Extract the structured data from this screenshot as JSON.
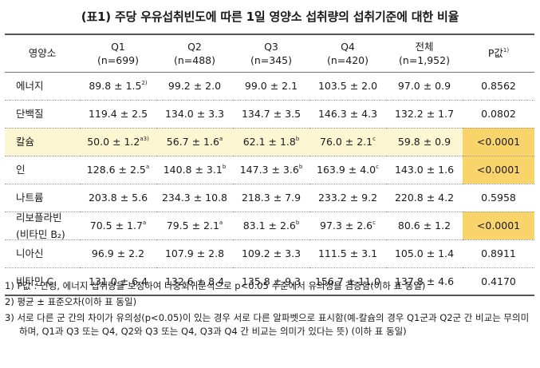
{
  "title": "(표1) 주당 우유섭취빈도에 따른 1일 영양소 섭취량의 섭취기준에 대한 비율",
  "table": {
    "headers": [
      {
        "label": "영양소",
        "sub": ""
      },
      {
        "label": "Q1",
        "sub": "(n=699)"
      },
      {
        "label": "Q2",
        "sub": "(n=488)"
      },
      {
        "label": "Q3",
        "sub": "(n=345)"
      },
      {
        "label": "Q4",
        "sub": "(n=420)"
      },
      {
        "label": "전체",
        "sub": "(n=1,952)"
      },
      {
        "label": "P값",
        "sup": "1)",
        "sub": ""
      }
    ],
    "rows": [
      {
        "name": "에너지",
        "sub": "",
        "cells": [
          {
            "value": "89.8 ± 1.5",
            "sup": "2)"
          },
          {
            "value": "99.2 ± 2.0",
            "sup": ""
          },
          {
            "value": "99.0 ± 2.1",
            "sup": ""
          },
          {
            "value": "103.5 ± 2.0",
            "sup": ""
          },
          {
            "value": "97.0 ± 0.9",
            "sup": ""
          }
        ],
        "p": "0.8562",
        "highlight": false
      },
      {
        "name": "단백질",
        "sub": "",
        "cells": [
          {
            "value": "119.4 ± 2.5",
            "sup": ""
          },
          {
            "value": "134.0 ± 3.3",
            "sup": ""
          },
          {
            "value": "134.7 ± 3.5",
            "sup": ""
          },
          {
            "value": "146.3 ± 4.3",
            "sup": ""
          },
          {
            "value": "132.2 ± 1.7",
            "sup": ""
          }
        ],
        "p": "0.0802",
        "highlight": false
      },
      {
        "name": "칼슘",
        "sub": "",
        "cells": [
          {
            "value": "50.0 ± 1.2",
            "sup": "a3)"
          },
          {
            "value": "56.7 ± 1.6",
            "sup": "a"
          },
          {
            "value": "62.1 ± 1.8",
            "sup": "b"
          },
          {
            "value": "76.0 ± 2.1",
            "sup": "c"
          },
          {
            "value": "59.8 ± 0.9",
            "sup": ""
          }
        ],
        "p": "<0.0001",
        "highlight": true
      },
      {
        "name": "인",
        "sub": "",
        "cells": [
          {
            "value": "128.6 ± 2.5",
            "sup": "a"
          },
          {
            "value": "140.8 ± 3.1",
            "sup": "b"
          },
          {
            "value": "147.3 ± 3.6",
            "sup": "b"
          },
          {
            "value": "163.9 ± 4.0",
            "sup": "c"
          },
          {
            "value": "143.0 ± 1.6",
            "sup": ""
          }
        ],
        "p": "<0.0001",
        "highlight": false
      },
      {
        "name": "나트륨",
        "sub": "",
        "cells": [
          {
            "value": "203.8 ± 5.6",
            "sup": ""
          },
          {
            "value": "234.3 ± 10.8",
            "sup": ""
          },
          {
            "value": "218.3 ± 7.9",
            "sup": ""
          },
          {
            "value": "233.2 ± 9.2",
            "sup": ""
          },
          {
            "value": "220.8 ± 4.2",
            "sup": ""
          }
        ],
        "p": "0.5958",
        "highlight": false
      },
      {
        "name": "리보플라빈",
        "sub": "(비타민 B₂)",
        "cells": [
          {
            "value": "70.5 ± 1.7",
            "sup": "a"
          },
          {
            "value": "79.5 ± 2.1",
            "sup": "a"
          },
          {
            "value": "83.1 ± 2.6",
            "sup": "b"
          },
          {
            "value": "97.3 ± 2.6",
            "sup": "c"
          },
          {
            "value": "80.6 ± 1.2",
            "sup": ""
          }
        ],
        "p": "<0.0001",
        "highlight": false
      },
      {
        "name": "니아신",
        "sub": "",
        "cells": [
          {
            "value": "96.9 ± 2.2",
            "sup": ""
          },
          {
            "value": "107.9 ± 2.8",
            "sup": ""
          },
          {
            "value": "109.2 ± 3.3",
            "sup": ""
          },
          {
            "value": "111.5 ± 3.1",
            "sup": ""
          },
          {
            "value": "105.0 ± 1.4",
            "sup": ""
          }
        ],
        "p": "0.8911",
        "highlight": false
      },
      {
        "name": "비타민 C",
        "sub": "",
        "cells": [
          {
            "value": "131.0 ± 6.4",
            "sup": ""
          },
          {
            "value": "132.6 ± 8.4",
            "sup": ""
          },
          {
            "value": "135.8 ± 9.3",
            "sup": ""
          },
          {
            "value": "156.7 ± 11.0",
            "sup": ""
          },
          {
            "value": "137.8 ± 4.6",
            "sup": ""
          }
        ],
        "p": "0.4170",
        "highlight": false
      }
    ],
    "p_highlight_rows": [
      2,
      3,
      5
    ]
  },
  "notes": [
    "1) P값 : 연령, 에너지 섭취량을 보정하여 다중회귀분석으로 p<0.05 수준에서 유의성을 검증함(이하 표 동일)",
    "2) 평균 ± 표준오차(이하 표 동일)",
    "3) 서로 다른 군 간의 차이가 유의성(p<0.05)이 있는 경우 서로 다른 알파벳으로 표시함(예-칼슘의 경우 Q1군과 Q2군 간 비교는 무의미하며, Q1과 Q3 또는 Q4, Q2와 Q3 또는 Q4, Q3과 Q4 간 비교는 의미가 있다는 뜻) (이하 표 동일)"
  ],
  "colors": {
    "row_highlight": "#fdf6d2",
    "p_highlight": "#f8d46b"
  }
}
